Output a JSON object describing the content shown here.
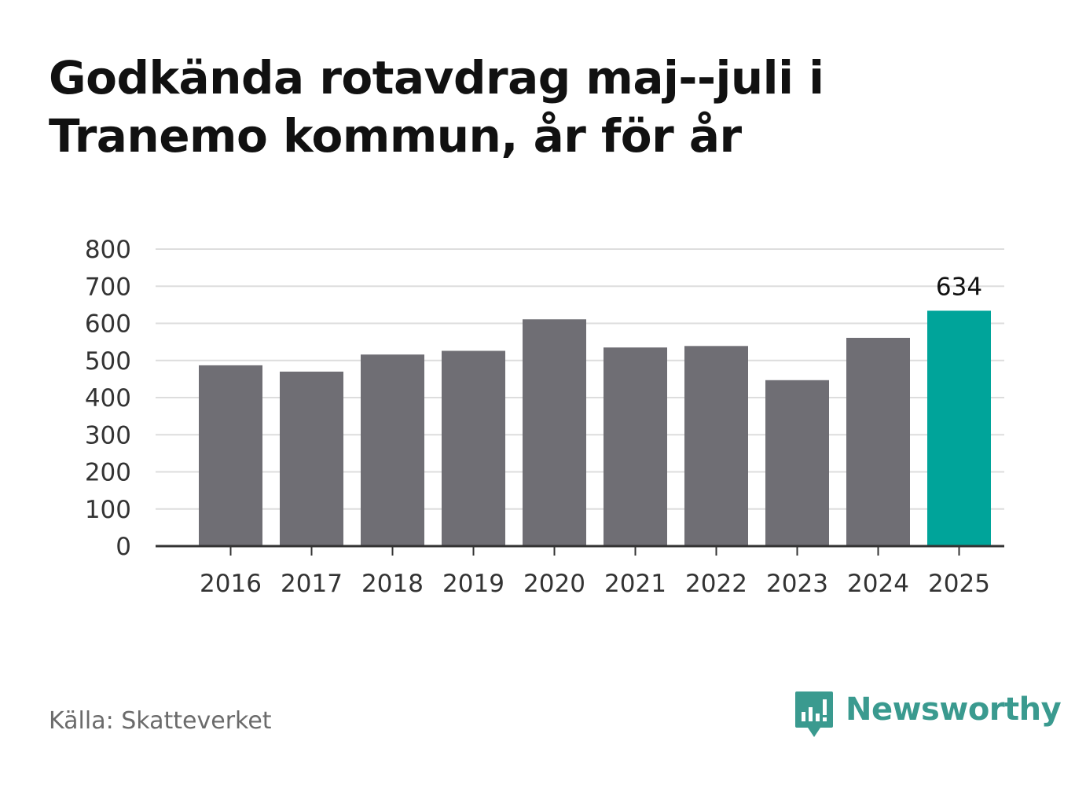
{
  "title": "Godkända rotavdrag maj--juli i Tranemo kommun, år för år",
  "source": "Källa: Skatteverket",
  "brand": {
    "name": "Newsworthy",
    "icon": "newsworthy-logo-icon",
    "color": "#3a9a8f"
  },
  "colors": {
    "bar": "#6f6e74",
    "highlight": "#00a49a",
    "grid": "#dddddd",
    "axis": "#333333",
    "tick_text": "#333333"
  },
  "chart_data": {
    "type": "bar",
    "title": "Godkända rotavdrag maj--juli i Tranemo kommun, år för år",
    "xlabel": "",
    "ylabel": "",
    "categories": [
      "2016",
      "2017",
      "2018",
      "2019",
      "2020",
      "2021",
      "2022",
      "2023",
      "2024",
      "2025"
    ],
    "values": [
      487,
      470,
      516,
      526,
      611,
      535,
      539,
      447,
      561,
      634
    ],
    "highlight_index": 9,
    "data_labels": [
      {
        "index": 9,
        "text": "634"
      }
    ],
    "ylim": [
      0,
      800
    ],
    "yticks": [
      0,
      100,
      200,
      300,
      400,
      500,
      600,
      700,
      800
    ],
    "grid": true,
    "legend": "none"
  }
}
